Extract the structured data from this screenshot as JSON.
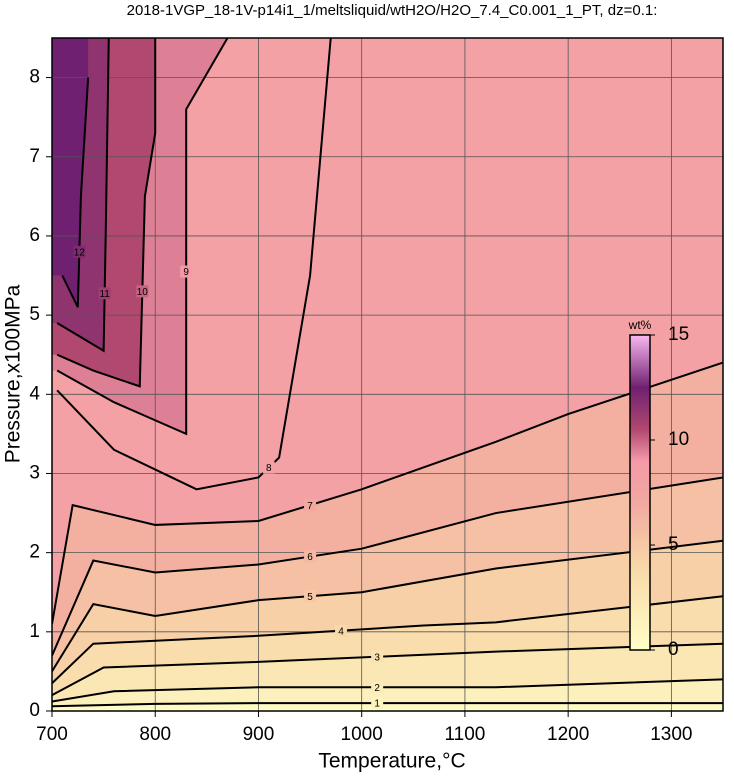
{
  "chart_data": {
    "type": "contour",
    "title": "2018-1VGP_18-1V-p14i1_1/meltsliquid/wtH2O/H2O_7.4_C0.001_1_PT, dz=0.1:",
    "x_label": "Temperature,°C",
    "y_label": "Pressure,x100MPa",
    "xlim": [
      700,
      1350
    ],
    "ylim": [
      0,
      8.5
    ],
    "xticks": [
      700,
      800,
      900,
      1000,
      1100,
      1200,
      1300
    ],
    "yticks": [
      0,
      1,
      2,
      3,
      4,
      5,
      6,
      7,
      8
    ],
    "grid": true,
    "colorbar": {
      "label": "wt%",
      "lim": [
        0,
        15
      ],
      "ticks": [
        0,
        5,
        10,
        15
      ]
    },
    "colormap": [
      {
        "value": 0,
        "color": "#ffffc8"
      },
      {
        "value": 4,
        "color": "#f8d8a8"
      },
      {
        "value": 7,
        "color": "#f2a8a0"
      },
      {
        "value": 9,
        "color": "#f49aa8"
      },
      {
        "value": 10.5,
        "color": "#b04870"
      },
      {
        "value": 12.5,
        "color": "#702070"
      },
      {
        "value": 15,
        "color": "#f8b8f0"
      }
    ],
    "contours": [
      {
        "level": 1,
        "x": [
          700,
          800,
          900,
          1130,
          1350
        ],
        "y": [
          0.06,
          0.09,
          0.1,
          0.1,
          0.1
        ]
      },
      {
        "level": 2,
        "x": [
          700,
          760,
          900,
          1130,
          1350
        ],
        "y": [
          0.12,
          0.25,
          0.3,
          0.3,
          0.4
        ]
      },
      {
        "level": 3,
        "x": [
          700,
          750,
          900,
          1130,
          1350
        ],
        "y": [
          0.2,
          0.55,
          0.62,
          0.75,
          0.85
        ]
      },
      {
        "level": 4,
        "x": [
          700,
          740,
          900,
          1060,
          1130,
          1350
        ],
        "y": [
          0.35,
          0.85,
          0.95,
          1.08,
          1.12,
          1.45
        ]
      },
      {
        "level": 5,
        "x": [
          700,
          740,
          800,
          900,
          1000,
          1130,
          1350
        ],
        "y": [
          0.5,
          1.35,
          1.2,
          1.4,
          1.5,
          1.8,
          2.15
        ]
      },
      {
        "level": 6,
        "x": [
          700,
          740,
          800,
          900,
          1000,
          1130,
          1350
        ],
        "y": [
          0.7,
          1.9,
          1.75,
          1.85,
          2.05,
          2.5,
          2.95
        ]
      },
      {
        "level": 7,
        "x": [
          700,
          720,
          800,
          900,
          1000,
          1130,
          1200,
          1350
        ],
        "y": [
          1.1,
          2.6,
          2.35,
          2.4,
          2.8,
          3.4,
          3.75,
          4.4
        ]
      },
      {
        "level": 8,
        "x": [
          705,
          760,
          840,
          900,
          920,
          950,
          970
        ],
        "y": [
          4.05,
          3.3,
          2.8,
          2.95,
          3.2,
          5.5,
          8.5
        ]
      },
      {
        "level": 9,
        "x": [
          705,
          760,
          830,
          830,
          870
        ],
        "y": [
          4.3,
          3.9,
          3.5,
          7.6,
          8.5
        ]
      },
      {
        "level": 10,
        "x": [
          705,
          740,
          785,
          790,
          800,
          800
        ],
        "y": [
          4.5,
          4.3,
          4.1,
          6.5,
          7.3,
          8.5
        ]
      },
      {
        "level": 11,
        "x": [
          705,
          750,
          752,
          755
        ],
        "y": [
          4.9,
          4.55,
          6.0,
          8.5
        ]
      },
      {
        "level": 12,
        "x": [
          710,
          725,
          728,
          735
        ],
        "y": [
          5.5,
          5.1,
          6.5,
          8.0
        ]
      }
    ]
  }
}
